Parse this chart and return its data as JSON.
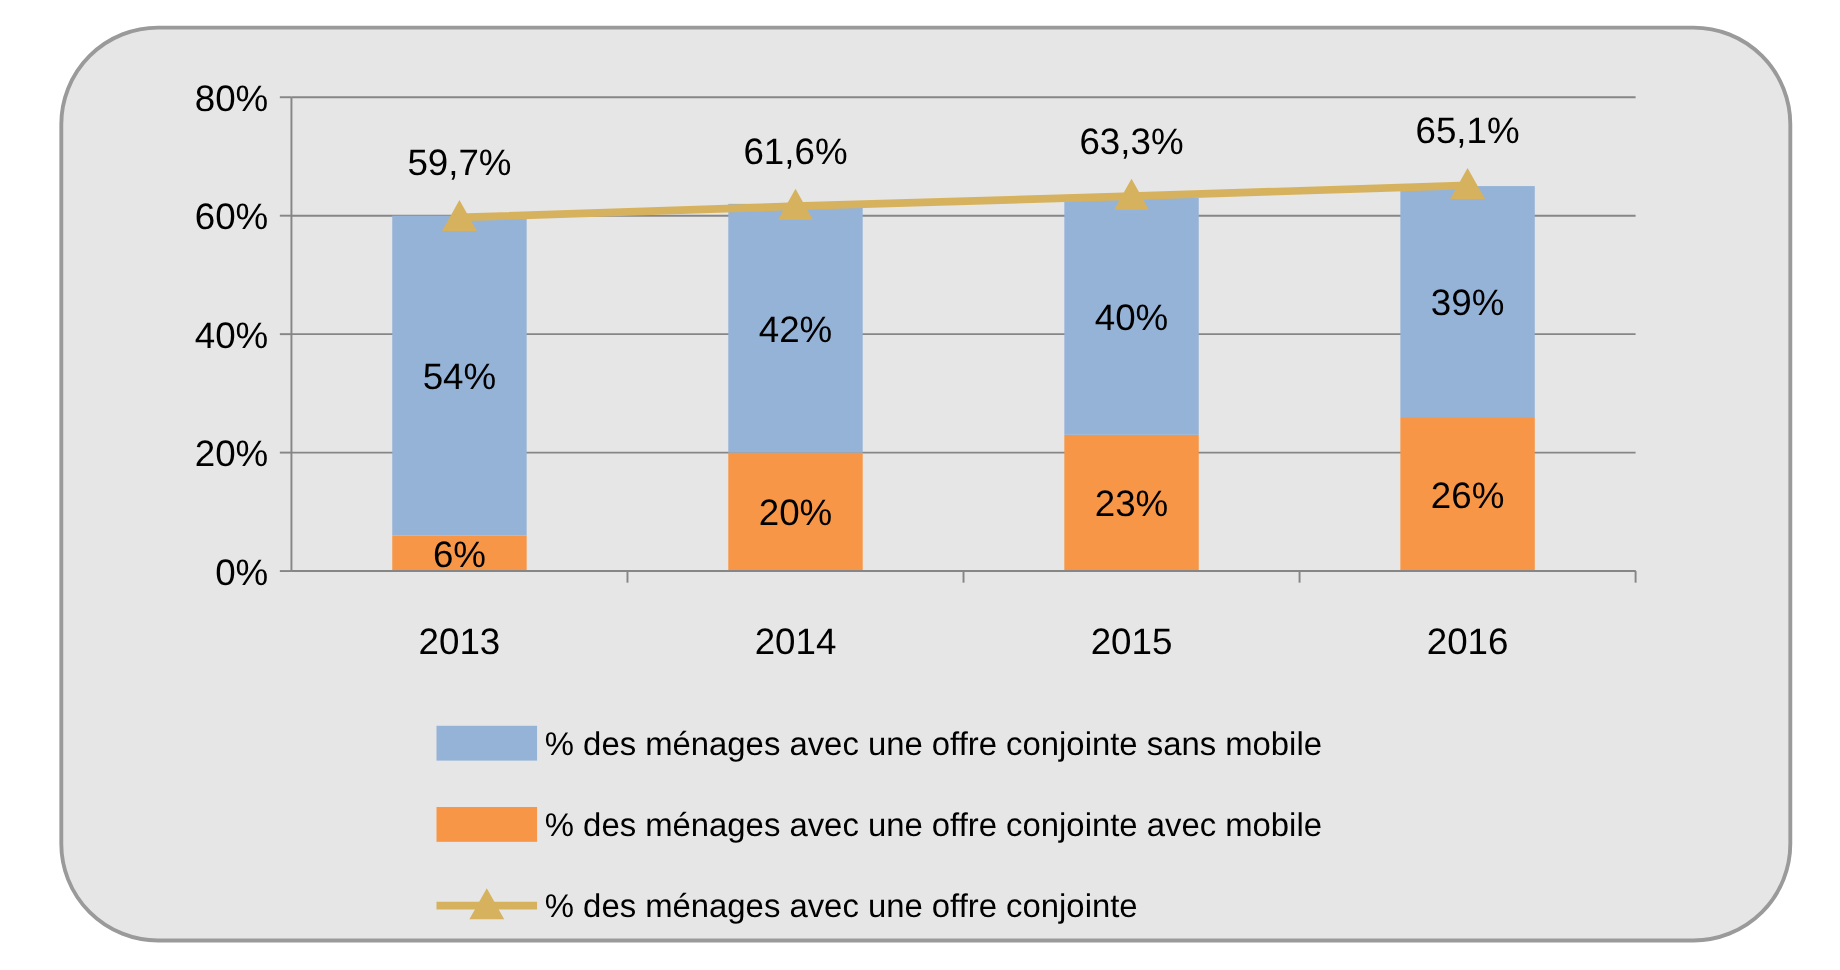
{
  "chart_data": {
    "type": "bar",
    "stacked": true,
    "categories": [
      "2013",
      "2014",
      "2015",
      "2016"
    ],
    "series": [
      {
        "name": "% des ménages avec une offre conjointe avec mobile",
        "color": "#f79646",
        "values": [
          6,
          20,
          23,
          26
        ],
        "value_labels": [
          "6%",
          "20%",
          "23%",
          "26%"
        ]
      },
      {
        "name": "% des ménages avec une offre conjointe sans mobile",
        "color": "#95b3d7",
        "values": [
          54,
          42,
          40,
          39
        ],
        "value_labels": [
          "54%",
          "42%",
          "40%",
          "39%"
        ]
      },
      {
        "name": "% des ménages avec une offre conjointe",
        "type": "line",
        "color": "#d6b25e",
        "values": [
          59.7,
          61.6,
          63.3,
          65.1
        ],
        "value_labels": [
          "59,7%",
          "61,6%",
          "63,3%",
          "65,1%"
        ],
        "marker": "triangle"
      }
    ],
    "ylim": [
      0,
      80
    ],
    "yticks": [
      {
        "value": 0,
        "label": "0%"
      },
      {
        "value": 20,
        "label": "20%"
      },
      {
        "value": 40,
        "label": "40%"
      },
      {
        "value": 60,
        "label": "60%"
      },
      {
        "value": 80,
        "label": "80%"
      }
    ],
    "grid": "y",
    "legend": "bottom"
  }
}
